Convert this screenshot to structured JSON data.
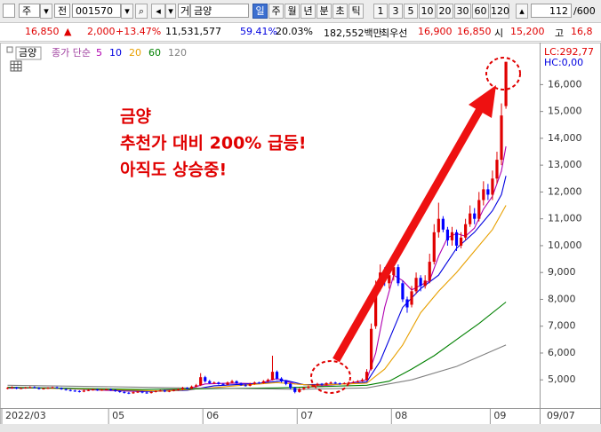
{
  "toolbar": {
    "market": "주",
    "mode": "전",
    "code": "001570",
    "name_prefix": "거",
    "name": "금양",
    "periods": [
      "일",
      "주",
      "월",
      "년",
      "분",
      "초",
      "틱"
    ],
    "intervals": [
      "1",
      "3",
      "5",
      "10",
      "20",
      "30",
      "60",
      "120"
    ],
    "count": "112",
    "max": "/600"
  },
  "quote": {
    "price": "16,850",
    "arrow": "▲",
    "change": "2,000",
    "change_pct": "+13.47%",
    "volume": "11,531,577",
    "ratio1": "59.41%",
    "ratio2": "20.03%",
    "amount": "182,552백만",
    "best_label": "최우선",
    "ask": "16,900",
    "bid": "16,850",
    "open_label": "시",
    "open": "15,200",
    "high_label": "고",
    "high": "16,8"
  },
  "chart_data": {
    "type": "candlestick",
    "title": "금양",
    "legend_prefix": "종가 단순",
    "lc": "LC:292,77",
    "hc": "HC:0,00",
    "annotations": [
      "금양",
      "추천가 대비 200% 급등!",
      "아직도 상승중!"
    ],
    "x_end_label": "09/07",
    "up_color": "#e00000",
    "down_color": "#0000ff",
    "categories": [
      "2022/03",
      null,
      null,
      null,
      null,
      null,
      null,
      null,
      null,
      null,
      null,
      null,
      null,
      null,
      null,
      null,
      null,
      null,
      null,
      null,
      null,
      null,
      null,
      "05",
      null,
      null,
      null,
      null,
      null,
      null,
      null,
      null,
      null,
      null,
      null,
      null,
      null,
      null,
      null,
      null,
      null,
      null,
      null,
      null,
      "06",
      null,
      null,
      null,
      null,
      null,
      null,
      null,
      null,
      null,
      null,
      null,
      null,
      null,
      null,
      null,
      null,
      null,
      null,
      null,
      null,
      "07",
      null,
      null,
      null,
      null,
      null,
      null,
      null,
      null,
      null,
      null,
      null,
      null,
      null,
      null,
      null,
      null,
      null,
      null,
      null,
      null,
      "08",
      null,
      null,
      null,
      null,
      null,
      null,
      null,
      null,
      null,
      null,
      null,
      null,
      null,
      null,
      null,
      null,
      null,
      null,
      null,
      null,
      null,
      "09",
      null,
      null,
      null
    ],
    "open": [
      4680,
      4700,
      4720,
      4680,
      4690,
      4710,
      4730,
      4700,
      4660,
      4680,
      4700,
      4720,
      4690,
      4650,
      4620,
      4600,
      4580,
      4560,
      4600,
      4620,
      4640,
      4610,
      4630,
      4650,
      4620,
      4580,
      4550,
      4520,
      4500,
      4540,
      4560,
      4530,
      4510,
      4550,
      4580,
      4600,
      4570,
      4590,
      4620,
      4650,
      4700,
      4680,
      4750,
      4800,
      5100,
      4950,
      4880,
      4900,
      4850,
      4820,
      4900,
      4950,
      4870,
      4800,
      4780,
      4850,
      4900,
      4880,
      4950,
      5000,
      5300,
      5050,
      4950,
      4850,
      4700,
      4550,
      4650,
      4700,
      4750,
      4800,
      4850,
      4820,
      4880,
      4900,
      4870,
      4850,
      4880,
      4900,
      4920,
      4950,
      5000,
      5400,
      7000,
      8500,
      9100,
      8600,
      8900,
      9200,
      8600,
      8000,
      7800,
      8300,
      8800,
      8500,
      8700,
      9400,
      10500,
      11000,
      10600,
      10200,
      10500,
      10000,
      10300,
      10800,
      11200,
      11000,
      11700,
      12100,
      11900,
      12500,
      13200,
      15200
    ],
    "high": [
      4730,
      4760,
      4740,
      4720,
      4740,
      4760,
      4760,
      4730,
      4710,
      4730,
      4750,
      4750,
      4720,
      4680,
      4650,
      4630,
      4610,
      4640,
      4650,
      4670,
      4670,
      4660,
      4680,
      4680,
      4650,
      4610,
      4580,
      4550,
      4570,
      4590,
      4590,
      4560,
      4580,
      4610,
      4630,
      4630,
      4620,
      4650,
      4680,
      4740,
      4730,
      4790,
      4850,
      5250,
      5150,
      5000,
      4940,
      4930,
      4880,
      4940,
      5000,
      4980,
      4900,
      4830,
      4890,
      4940,
      4930,
      4990,
      5050,
      5900,
      5350,
      5100,
      4990,
      4880,
      4740,
      4700,
      4740,
      4790,
      4840,
      4890,
      4880,
      4910,
      4940,
      4930,
      4900,
      4910,
      4940,
      4960,
      4990,
      5060,
      5400,
      7100,
      8700,
      9300,
      9200,
      9100,
      9500,
      9300,
      8700,
      8100,
      8500,
      9000,
      8900,
      8900,
      9700,
      10800,
      11600,
      11100,
      10700,
      10700,
      10600,
      10500,
      11000,
      11500,
      11400,
      12000,
      12400,
      12300,
      12800,
      13500,
      15300,
      16850
    ],
    "low": [
      4650,
      4670,
      4650,
      4660,
      4670,
      4690,
      4680,
      4640,
      4640,
      4660,
      4680,
      4670,
      4630,
      4600,
      4570,
      4550,
      4530,
      4540,
      4580,
      4600,
      4590,
      4590,
      4610,
      4590,
      4550,
      4520,
      4490,
      4470,
      4480,
      4510,
      4500,
      4480,
      4490,
      4530,
      4560,
      4540,
      4540,
      4570,
      4600,
      4620,
      4650,
      4650,
      4720,
      4770,
      4900,
      4850,
      4850,
      4820,
      4790,
      4800,
      4870,
      4850,
      4780,
      4750,
      4760,
      4820,
      4850,
      4860,
      4920,
      4980,
      5000,
      4900,
      4800,
      4650,
      4500,
      4520,
      4620,
      4680,
      4720,
      4770,
      4790,
      4800,
      4850,
      4850,
      4820,
      4830,
      4860,
      4880,
      4900,
      4930,
      4970,
      5350,
      6900,
      8300,
      8500,
      8400,
      8700,
      8500,
      7900,
      7500,
      7700,
      8200,
      8300,
      8400,
      8600,
      9300,
      10300,
      10500,
      10000,
      10000,
      9800,
      9900,
      10200,
      10700,
      10800,
      10900,
      11500,
      11700,
      11700,
      12300,
      13000,
      15100
    ],
    "close": [
      4700,
      4720,
      4680,
      4690,
      4710,
      4730,
      4700,
      4660,
      4680,
      4700,
      4720,
      4690,
      4650,
      4620,
      4600,
      4580,
      4560,
      4600,
      4620,
      4640,
      4610,
      4630,
      4650,
      4620,
      4580,
      4550,
      4520,
      4500,
      4540,
      4560,
      4530,
      4510,
      4550,
      4580,
      4600,
      4570,
      4590,
      4620,
      4650,
      4700,
      4680,
      4750,
      4800,
      5100,
      4950,
      4880,
      4900,
      4850,
      4820,
      4900,
      4950,
      4870,
      4800,
      4780,
      4850,
      4900,
      4880,
      4950,
      5000,
      5300,
      5050,
      4950,
      4850,
      4700,
      4550,
      4650,
      4700,
      4750,
      4800,
      4850,
      4820,
      4880,
      4900,
      4870,
      4850,
      4880,
      4900,
      4920,
      4950,
      5000,
      5300,
      6900,
      8400,
      9000,
      8700,
      8900,
      9200,
      8600,
      8000,
      7700,
      8300,
      8800,
      8500,
      8700,
      9400,
      10500,
      11000,
      10600,
      10200,
      10500,
      10000,
      10300,
      10800,
      11200,
      11000,
      11700,
      12100,
      11900,
      12500,
      13200,
      14850,
      16850
    ],
    "series": [
      {
        "name": "5",
        "color": "#b000b0",
        "x": [
          0,
          10,
          20,
          30,
          40,
          44,
          50,
          56,
          60,
          64,
          70,
          76,
          80,
          82,
          84,
          86,
          88,
          90,
          94,
          96,
          98,
          100,
          102,
          104,
          106,
          108,
          110,
          111
        ],
        "values": [
          4690,
          4700,
          4620,
          4560,
          4650,
          4850,
          4880,
          4860,
          5050,
          4850,
          4780,
          4870,
          5000,
          6000,
          7700,
          8900,
          8700,
          8350,
          8700,
          9600,
          10300,
          10450,
          10350,
          10660,
          11360,
          11840,
          12780,
          13700
        ]
      },
      {
        "name": "10",
        "color": "#0000e0",
        "x": [
          0,
          12,
          22,
          32,
          40,
          46,
          56,
          62,
          66,
          76,
          80,
          83,
          86,
          88,
          92,
          96,
          100,
          104,
          108,
          110,
          111
        ],
        "values": [
          4700,
          4690,
          4630,
          4570,
          4610,
          4780,
          4870,
          4980,
          4820,
          4850,
          4920,
          5700,
          6900,
          7700,
          8400,
          8900,
          9900,
          10500,
          11300,
          11900,
          12600
        ]
      },
      {
        "name": "20",
        "color": "#e8a000",
        "x": [
          0,
          20,
          35,
          45,
          60,
          68,
          80,
          84,
          88,
          92,
          96,
          100,
          104,
          108,
          111
        ],
        "values": [
          4720,
          4650,
          4580,
          4700,
          4900,
          4800,
          4880,
          5400,
          6300,
          7500,
          8300,
          9000,
          9800,
          10600,
          11500
        ]
      },
      {
        "name": "60",
        "color": "#008000",
        "x": [
          0,
          30,
          60,
          80,
          85,
          90,
          95,
          100,
          105,
          111
        ],
        "values": [
          4720,
          4640,
          4700,
          4800,
          4950,
          5400,
          5900,
          6500,
          7100,
          7900
        ]
      },
      {
        "name": "120",
        "color": "#808080",
        "x": [
          0,
          40,
          65,
          80,
          90,
          100,
          111
        ],
        "values": [
          4800,
          4700,
          4650,
          4700,
          5000,
          5500,
          6300
        ]
      }
    ],
    "ylim": [
      3950,
      17500
    ],
    "yticks": [
      {
        "value": 5000,
        "label": "5,000"
      },
      {
        "value": 6000,
        "label": "6,000"
      },
      {
        "value": 7000,
        "label": "7,000"
      },
      {
        "value": 8000,
        "label": "8,000"
      },
      {
        "value": 9000,
        "label": "9,000"
      },
      {
        "value": 10000,
        "label": "10,000"
      },
      {
        "value": 11000,
        "label": "11,000"
      },
      {
        "value": 12000,
        "label": "12,000"
      },
      {
        "value": 13000,
        "label": "13,000"
      },
      {
        "value": 14000,
        "label": "14,000"
      },
      {
        "value": 15000,
        "label": "15,000"
      },
      {
        "value": 16000,
        "label": "16,000"
      }
    ],
    "grid": false
  }
}
